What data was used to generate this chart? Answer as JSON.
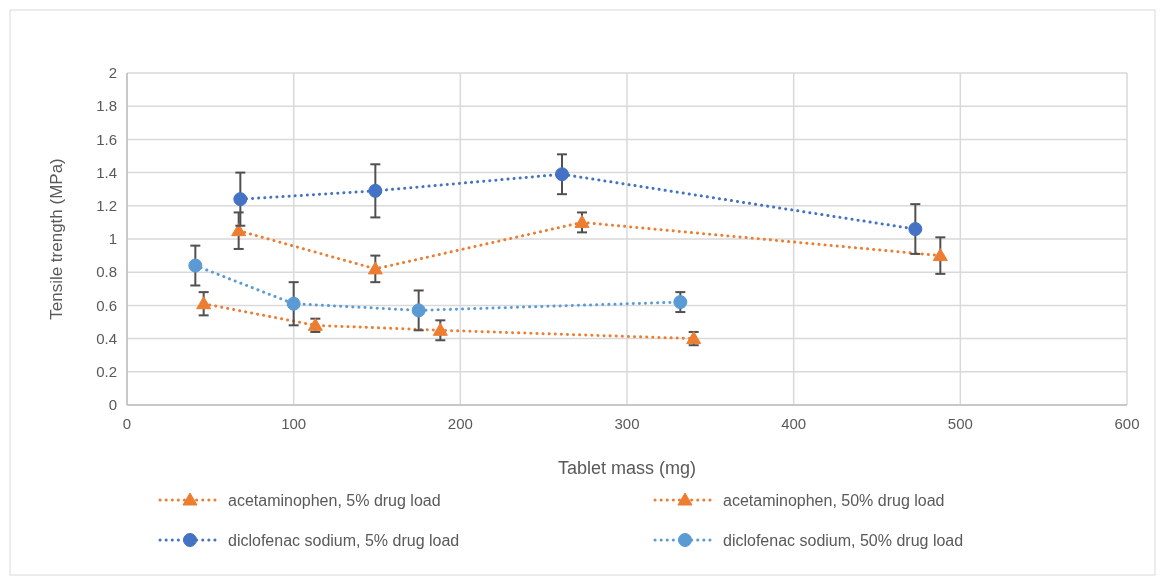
{
  "chart_data": {
    "type": "line",
    "xlabel": "Tablet mass (mg)",
    "ylabel": "Tensile trength (MPa)",
    "xlim": [
      0,
      600
    ],
    "xticks": [
      0,
      100,
      200,
      300,
      400,
      500,
      600
    ],
    "ylim": [
      0,
      2
    ],
    "yticks": [
      0,
      0.2,
      0.4,
      0.6,
      0.8,
      1,
      1.2,
      1.4,
      1.6,
      1.8,
      2
    ],
    "grid": true,
    "legend": "bottom",
    "line_style": "dotted",
    "series": [
      {
        "name": "acetaminophen, 5% drug load",
        "color": "#ed7d31",
        "marker": "triangle",
        "x": [
          67,
          149,
          273,
          488
        ],
        "values": [
          1.05,
          0.82,
          1.1,
          0.9
        ],
        "errors": [
          0.11,
          0.08,
          0.06,
          0.11
        ]
      },
      {
        "name": "acetaminophen, 50% drug load",
        "color": "#ed7d31",
        "marker": "triangle",
        "x": [
          46,
          113,
          188,
          340
        ],
        "values": [
          0.61,
          0.48,
          0.45,
          0.4
        ],
        "errors": [
          0.07,
          0.04,
          0.06,
          0.04
        ]
      },
      {
        "name": "diclofenac sodium, 5% drug load",
        "color": "#4472c4",
        "marker": "circle",
        "x": [
          68,
          149,
          261,
          473
        ],
        "values": [
          1.24,
          1.29,
          1.39,
          1.06
        ],
        "errors": [
          0.16,
          0.16,
          0.12,
          0.15
        ]
      },
      {
        "name": "diclofenac sodium, 50% drug load",
        "color": "#5b9bd5",
        "marker": "circle",
        "x": [
          41,
          100,
          175,
          332
        ],
        "values": [
          0.84,
          0.61,
          0.57,
          0.62
        ],
        "errors": [
          0.12,
          0.13,
          0.12,
          0.06
        ]
      }
    ]
  }
}
